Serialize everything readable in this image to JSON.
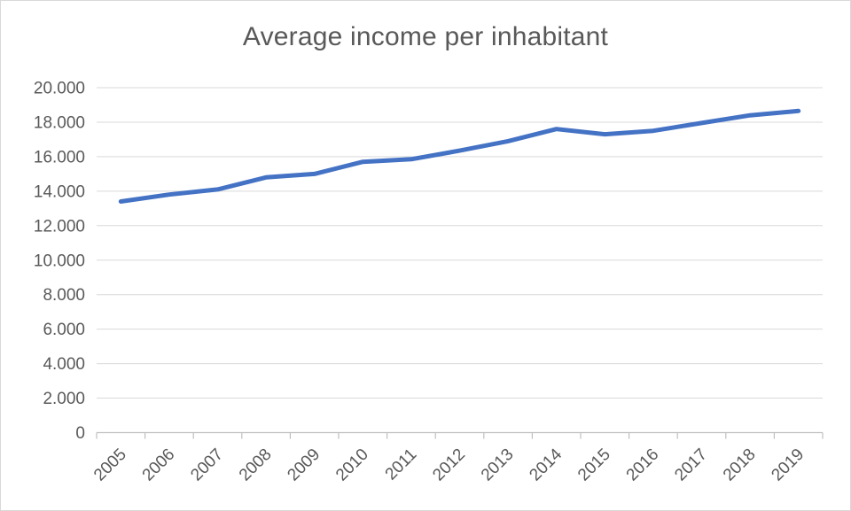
{
  "chart_data": {
    "type": "line",
    "title": "Average income per inhabitant",
    "categories": [
      "2005",
      "2006",
      "2007",
      "2008",
      "2009",
      "2010",
      "2011",
      "2012",
      "2013",
      "2014",
      "2015",
      "2016",
      "2017",
      "2018",
      "2019"
    ],
    "series": [
      {
        "name": "Average income per inhabitant",
        "values": [
          13400,
          13800,
          14100,
          14800,
          15000,
          15700,
          15850,
          16350,
          16900,
          17600,
          17300,
          17500,
          17950,
          18400,
          18650
        ]
      }
    ],
    "xlabel": "",
    "ylabel": "",
    "ylim": [
      0,
      20000
    ],
    "ytick_step": 2000,
    "ytick_labels": [
      "0",
      "2.000",
      "4.000",
      "6.000",
      "8.000",
      "10.000",
      "12.000",
      "14.000",
      "16.000",
      "18.000",
      "20.000"
    ],
    "grid": true,
    "legend_position": "none",
    "line_color": "#4472C4",
    "gridline_color": "#d9d9d9",
    "axis_color": "#bfbfbf",
    "text_color": "#595959",
    "background_color": "#ffffff",
    "border_color": "#d9d9d9"
  }
}
